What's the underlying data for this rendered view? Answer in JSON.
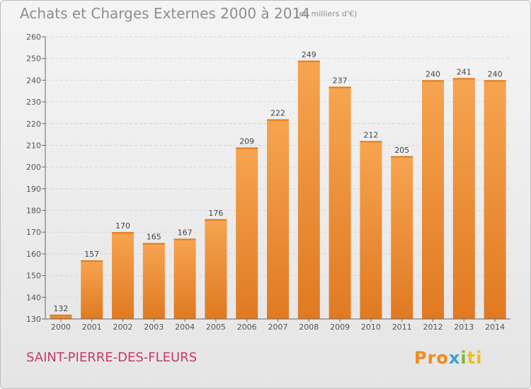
{
  "header": {
    "title": "Achats et Charges Externes 2000 à 2014",
    "unit": "(en milliers d'€)"
  },
  "footer": {
    "commune": "SAINT-PIERRE-DES-FLEURS",
    "logo_parts": [
      "Pro",
      "x",
      "i",
      "ti"
    ]
  },
  "colors": {
    "bar_light": "#f7a450",
    "bar_dark": "#e07a22",
    "commune": "#c43a6e",
    "grid": "#d6d6d6"
  },
  "chart_data": {
    "type": "bar",
    "title": "Achats et Charges Externes 2000 à 2014",
    "subtitle": "(en milliers d'€)",
    "categories": [
      "2000",
      "2001",
      "2002",
      "2003",
      "2004",
      "2005",
      "2006",
      "2007",
      "2008",
      "2009",
      "2010",
      "2011",
      "2012",
      "2013",
      "2014"
    ],
    "values": [
      132,
      157,
      170,
      165,
      167,
      176,
      209,
      222,
      249,
      237,
      212,
      205,
      240,
      241,
      240
    ],
    "ylim": [
      130,
      260
    ],
    "yticks": [
      130,
      140,
      150,
      160,
      170,
      180,
      190,
      200,
      210,
      220,
      230,
      240,
      250,
      260
    ],
    "grid": true,
    "data_labels": true
  }
}
